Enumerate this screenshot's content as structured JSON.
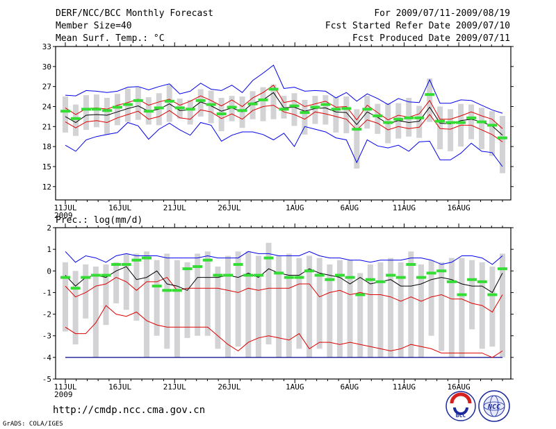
{
  "header": {
    "title": "DERF/NCC/BCC Monthly Forecast",
    "member_size": "Member Size=40",
    "variable": "Mean Surf. Temp.: °C",
    "forecast_period": "For 2009/07/11-2009/08/19",
    "start_date": "Fcst Started Refer Date 2009/07/10",
    "produced_date": "Fcst Produced Date 2009/07/11"
  },
  "footer": {
    "url": "http://cmdp.ncc.cma.gov.cn",
    "credit": "GrADS: COLA/IGES",
    "logo_bcc": "BCC",
    "logo_ncc": "NCC"
  },
  "colors": {
    "envelope": "#0000ee",
    "quartile": "#dd0000",
    "mean": "#000000",
    "median": "#33dd33",
    "box": "#d3d3d6",
    "floor": "#000088"
  },
  "chart_data": [
    {
      "type": "box-whisker-ensemble",
      "title": "Mean Surf. Temp.: °C",
      "ylim": [
        10,
        33
      ],
      "yticks": [
        12,
        15,
        18,
        21,
        24,
        27,
        30,
        33
      ],
      "xlabels": [
        {
          "day": 0,
          "label": "11JUL",
          "sub": "2009"
        },
        {
          "day": 5,
          "label": "16JUL"
        },
        {
          "day": 10,
          "label": "21JUL"
        },
        {
          "day": 15,
          "label": "26JUL"
        },
        {
          "day": 21,
          "label": "1AUG"
        },
        {
          "day": 26,
          "label": "6AUG"
        },
        {
          "day": 31,
          "label": "11AUG"
        },
        {
          "day": 36,
          "label": "16AUG"
        }
      ],
      "days": 40,
      "max": [
        25.7,
        25.6,
        26.4,
        26.3,
        26.1,
        26.3,
        26.9,
        27.0,
        26.5,
        27.0,
        27.4,
        25.9,
        26.3,
        27.5,
        26.6,
        26.4,
        27.2,
        26.1,
        27.9,
        29.0,
        30.2,
        26.7,
        26.9,
        26.3,
        26.4,
        26.3,
        25.3,
        26.1,
        24.8,
        25.9,
        25.2,
        24.3,
        25.2,
        24.7,
        24.6,
        28.0,
        24.5,
        24.5,
        25.0,
        24.9,
        24.2,
        23.5,
        23.0
      ],
      "q75": [
        23.8,
        22.8,
        23.7,
        23.8,
        23.6,
        24.2,
        24.6,
        25.1,
        24.2,
        24.7,
        25.1,
        24.2,
        24.8,
        25.6,
        24.9,
        24.1,
        25.0,
        24.0,
        25.3,
        26.1,
        27.2,
        24.6,
        24.9,
        24.0,
        24.4,
        24.8,
        23.9,
        24.0,
        22.0,
        24.2,
        23.1,
        22.0,
        22.7,
        22.4,
        22.9,
        24.9,
        22.1,
        22.1,
        22.6,
        23.2,
        22.6,
        22.1,
        20.7
      ],
      "mean": [
        22.5,
        21.6,
        22.7,
        22.8,
        22.7,
        23.2,
        23.7,
        24.1,
        23.3,
        23.6,
        24.4,
        23.4,
        23.5,
        24.7,
        24.1,
        23.3,
        23.8,
        23.2,
        24.5,
        25.0,
        26.1,
        23.8,
        23.9,
        23.3,
        23.7,
        23.8,
        23.2,
        23.1,
        21.3,
        23.2,
        22.4,
        21.4,
        21.9,
        21.6,
        21.8,
        23.9,
        21.5,
        21.4,
        21.9,
        22.1,
        21.7,
        21.1,
        19.7
      ],
      "q25": [
        21.7,
        20.8,
        21.7,
        21.9,
        21.6,
        22.3,
        22.8,
        23.3,
        22.1,
        22.5,
        23.4,
        22.3,
        22.1,
        23.5,
        23.2,
        22.2,
        22.9,
        22.1,
        23.4,
        24.0,
        24.2,
        23.2,
        22.8,
        22.1,
        23.2,
        22.9,
        22.5,
        22.1,
        20.5,
        22.0,
        21.5,
        20.5,
        21.0,
        20.7,
        20.9,
        22.8,
        20.7,
        20.6,
        21.2,
        21.2,
        20.5,
        19.8,
        18.7
      ],
      "min": [
        18.2,
        17.3,
        19.0,
        19.5,
        19.8,
        20.1,
        21.6,
        21.1,
        19.1,
        20.6,
        21.5,
        20.5,
        19.7,
        21.6,
        21.2,
        18.8,
        19.7,
        20.2,
        20.2,
        19.8,
        19.0,
        20.0,
        18.0,
        21.0,
        20.6,
        20.2,
        19.3,
        19.0,
        15.6,
        19.0,
        18.1,
        17.8,
        18.2,
        17.3,
        18.7,
        18.8,
        16.0,
        16.0,
        17.0,
        18.5,
        17.3,
        17.1,
        15.0
      ],
      "median": [
        23.3,
        22.2,
        23.6,
        23.6,
        23.4,
        23.9,
        24.3,
        24.9,
        23.3,
        23.8,
        24.8,
        23.8,
        23.6,
        24.9,
        24.3,
        22.9,
        23.9,
        23.4,
        24.4,
        25.0,
        26.6,
        23.6,
        24.1,
        23.1,
        23.9,
        24.3,
        23.6,
        23.7,
        20.6,
        23.6,
        22.6,
        21.6,
        22.1,
        22.3,
        22.3,
        25.8,
        21.8,
        21.6,
        21.6,
        22.3,
        21.7,
        21.2,
        19.3
      ],
      "box_hi": [
        25.5,
        24.3,
        25.7,
        25.8,
        25.3,
        25.9,
        26.7,
        26.9,
        25.4,
        26.0,
        27.3,
        25.2,
        25.0,
        26.6,
        26.4,
        25.3,
        25.6,
        25.5,
        26.3,
        26.9,
        27.3,
        25.6,
        26.0,
        25.0,
        25.6,
        25.7,
        25.4,
        25.5,
        23.6,
        25.6,
        24.4,
        24.5,
        24.5,
        25.3,
        24.1,
        28.2,
        24.0,
        23.6,
        24.4,
        24.3,
        23.8,
        23.3,
        22.6
      ],
      "box_lo": [
        20.1,
        19.6,
        20.5,
        20.9,
        19.8,
        21.2,
        21.7,
        22.0,
        21.3,
        21.2,
        21.7,
        22.2,
        21.3,
        22.5,
        21.5,
        20.3,
        21.8,
        20.8,
        22.1,
        21.8,
        22.1,
        22.2,
        21.1,
        19.8,
        21.4,
        21.3,
        20.1,
        20.0,
        14.7,
        20.7,
        19.9,
        18.5,
        19.2,
        19.5,
        19.3,
        21.7,
        17.6,
        17.3,
        18.0,
        19.1,
        17.6,
        16.6,
        14.0
      ]
    },
    {
      "type": "box-whisker-ensemble",
      "title": "Prec.: log(mm/d)",
      "ylim": [
        -5,
        2
      ],
      "yticks": [
        -5,
        -4,
        -3,
        -2,
        -1,
        0,
        1,
        2
      ],
      "xlabels": [
        {
          "day": 0,
          "label": "11JUL",
          "sub": "2009"
        },
        {
          "day": 5,
          "label": "16JUL"
        },
        {
          "day": 10,
          "label": "21JUL"
        },
        {
          "day": 15,
          "label": "26JUL"
        },
        {
          "day": 21,
          "label": "1AUG"
        },
        {
          "day": 26,
          "label": "6AUG"
        },
        {
          "day": 31,
          "label": "11AUG"
        },
        {
          "day": 36,
          "label": "16AUG"
        }
      ],
      "days": 40,
      "floor": -4,
      "max": [
        0.9,
        0.4,
        0.7,
        0.6,
        0.4,
        0.7,
        0.8,
        0.7,
        0.7,
        0.7,
        0.6,
        0.6,
        0.6,
        0.6,
        0.7,
        0.6,
        0.6,
        0.6,
        0.9,
        0.8,
        0.8,
        0.7,
        0.7,
        0.7,
        0.9,
        0.7,
        0.6,
        0.6,
        0.5,
        0.5,
        0.4,
        0.5,
        0.5,
        0.5,
        0.6,
        0.6,
        0.5,
        0.3,
        0.4,
        0.7,
        0.7,
        0.6,
        0.3,
        0.7
      ],
      "mean": [
        -0.2,
        -0.7,
        -0.3,
        -0.2,
        -0.3,
        0.0,
        0.2,
        -0.4,
        -0.3,
        0.0,
        -0.6,
        -0.7,
        -0.9,
        -0.3,
        -0.3,
        -0.3,
        -0.2,
        -0.3,
        -0.1,
        -0.3,
        0.1,
        -0.1,
        -0.2,
        -0.2,
        0.1,
        -0.1,
        -0.2,
        -0.3,
        -0.6,
        -0.3,
        -0.6,
        -0.5,
        -0.4,
        -0.7,
        -0.7,
        -0.6,
        -0.4,
        -0.3,
        -0.4,
        -0.6,
        -0.7,
        -0.7,
        -1.0,
        -0.1
      ],
      "q75": [
        -0.7,
        -1.2,
        -1.0,
        -0.7,
        -0.6,
        -0.3,
        -0.5,
        -0.9,
        -0.5,
        -0.5,
        -0.3,
        -0.9,
        -0.8,
        -0.8,
        -0.8,
        -0.8,
        -0.9,
        -1.0,
        -0.8,
        -0.9,
        -0.8,
        -0.8,
        -0.8,
        -0.6,
        -0.6,
        -1.2,
        -1.0,
        -0.9,
        -1.1,
        -1.0,
        -1.1,
        -1.1,
        -1.2,
        -1.4,
        -1.2,
        -1.4,
        -1.2,
        -1.1,
        -1.3,
        -1.3,
        -1.5,
        -1.6,
        -1.9,
        -1.1
      ],
      "q25": [
        -2.6,
        -2.9,
        -2.9,
        -2.4,
        -1.6,
        -2.0,
        -2.1,
        -1.9,
        -2.3,
        -2.5,
        -2.6,
        -2.6,
        -2.6,
        -2.6,
        -2.6,
        -3.0,
        -3.4,
        -3.7,
        -3.3,
        -3.1,
        -3.0,
        -3.1,
        -3.2,
        -2.9,
        -3.6,
        -3.3,
        -3.3,
        -3.4,
        -3.3,
        -3.4,
        -3.5,
        -3.6,
        -3.7,
        -3.6,
        -3.4,
        -3.5,
        -3.6,
        -3.8,
        -3.8,
        -3.8,
        -3.8,
        -3.8,
        -4.0,
        -3.7
      ],
      "min": [
        -4,
        -4,
        -4,
        -4,
        -4,
        -4,
        -4,
        -4,
        -4,
        -4,
        -4,
        -4,
        -4,
        -4,
        -4,
        -4,
        -4,
        -4,
        -4,
        -4,
        -4,
        -4,
        -4,
        -4,
        -4,
        -4,
        -4,
        -4,
        -4,
        -4,
        -4,
        -4,
        -4,
        -4,
        -4,
        -4,
        -4,
        -4,
        -4,
        -4,
        -4,
        -4,
        -4,
        -4
      ],
      "median": [
        -0.3,
        -0.8,
        -0.3,
        -0.2,
        -0.2,
        0.3,
        0.3,
        0.5,
        0.6,
        -0.7,
        -0.9,
        -0.9,
        0.1,
        0.2,
        0.5,
        -0.2,
        -0.2,
        0.3,
        -0.2,
        -0.2,
        0.6,
        -0.1,
        -0.3,
        -0.3,
        0.0,
        -0.2,
        -0.4,
        -0.2,
        -0.3,
        -1.1,
        -0.4,
        -0.5,
        -0.2,
        -0.3,
        0.3,
        -0.3,
        -0.1,
        0.0,
        -0.5,
        -1.1,
        -0.4,
        -0.5,
        -1.1,
        0.1
      ],
      "box_hi": [
        0.4,
        0.0,
        0.3,
        0.2,
        0.3,
        0.4,
        0.8,
        0.8,
        0.9,
        0.5,
        0.8,
        0.5,
        0.4,
        0.8,
        0.9,
        0.2,
        0.7,
        0.9,
        0.9,
        0.7,
        1.3,
        0.7,
        0.8,
        0.6,
        0.7,
        0.6,
        0.3,
        0.5,
        0.5,
        -0.1,
        0.3,
        0.4,
        0.6,
        0.4,
        0.9,
        0.3,
        0.5,
        0.4,
        0.6,
        0.6,
        0.5,
        0.4,
        0.2,
        0.8
      ],
      "box_lo": [
        -2.8,
        -3.4,
        -2.2,
        -4.0,
        -2.5,
        -1.5,
        -1.8,
        -2.3,
        -4.0,
        -3.0,
        -3.6,
        -4.0,
        -3.1,
        -3.0,
        -3.0,
        -3.6,
        -4.0,
        -3.5,
        -4.0,
        -4.0,
        -3.4,
        -4.0,
        -4.0,
        -3.6,
        -4.0,
        -3.6,
        -4.0,
        -4.0,
        -4.0,
        -4.0,
        -4.0,
        -4.0,
        -4.0,
        -4.0,
        -4.0,
        -4.0,
        -3.0,
        -3.7,
        -4.0,
        -4.0,
        -2.7,
        -3.6,
        -3.5,
        -4.0
      ]
    }
  ]
}
